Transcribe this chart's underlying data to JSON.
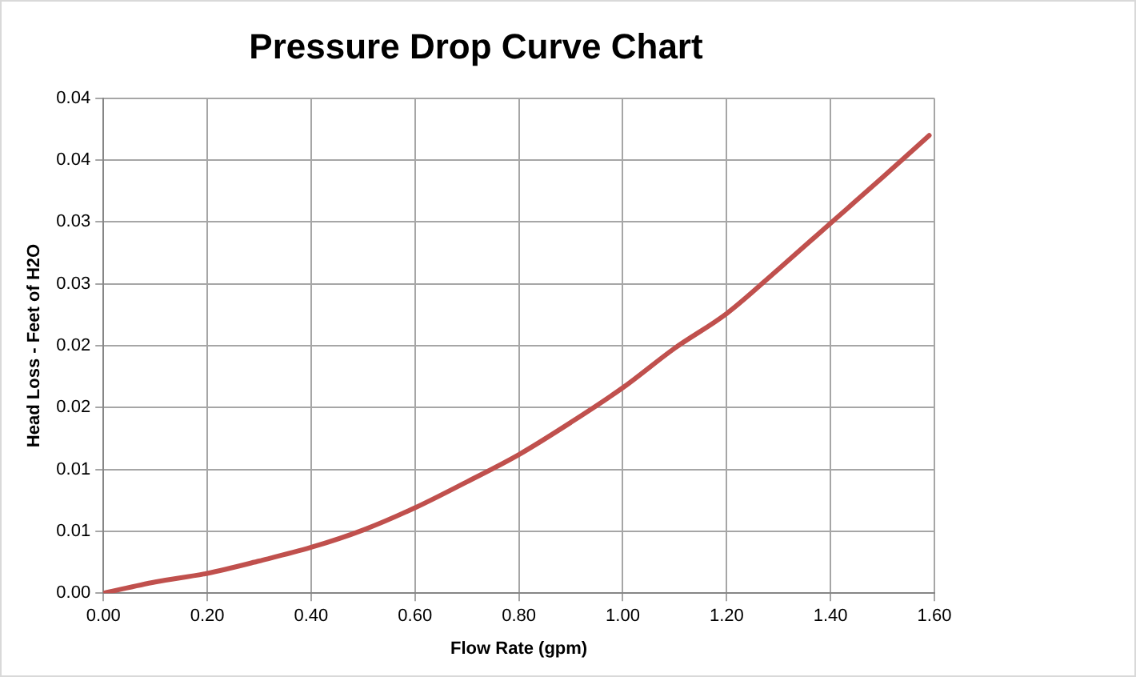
{
  "chart_data": {
    "type": "line",
    "title": "Pressure Drop Curve Chart",
    "xlabel": "Flow Rate (gpm)",
    "ylabel": "Head Loss - Feet of H2O",
    "x": [
      0,
      0.1,
      0.2,
      0.3,
      0.4,
      0.5,
      0.6,
      0.7,
      0.8,
      0.9,
      1.0,
      1.1,
      1.2,
      1.3,
      1.4,
      1.5,
      1.59
    ],
    "series": [
      {
        "color": "#c0504d",
        "values": [
          0,
          0.0009,
          0.0016,
          0.0026,
          0.0037,
          0.0051,
          0.0069,
          0.009,
          0.0112,
          0.0138,
          0.0166,
          0.0198,
          0.0226,
          0.0262,
          0.0299,
          0.0336,
          0.037
        ]
      }
    ],
    "xlim": [
      0,
      1.6
    ],
    "xticks": [
      {
        "value": 0,
        "label": "0.00"
      },
      {
        "value": 0.2,
        "label": "0.20"
      },
      {
        "value": 0.4,
        "label": "0.40"
      },
      {
        "value": 0.6,
        "label": "0.60"
      },
      {
        "value": 0.8,
        "label": "0.80"
      },
      {
        "value": 1.0,
        "label": "1.00"
      },
      {
        "value": 1.2,
        "label": "1.20"
      },
      {
        "value": 1.4,
        "label": "1.40"
      },
      {
        "value": 1.6,
        "label": "1.60"
      }
    ],
    "ylim": [
      0,
      0.04
    ],
    "yticks": [
      {
        "value": 0,
        "label": "0.00"
      },
      {
        "value": 0.005,
        "label": "0.01"
      },
      {
        "value": 0.01,
        "label": "0.01"
      },
      {
        "value": 0.015,
        "label": "0.02"
      },
      {
        "value": 0.02,
        "label": "0.02"
      },
      {
        "value": 0.025,
        "label": "0.03"
      },
      {
        "value": 0.03,
        "label": "0.03"
      },
      {
        "value": 0.035,
        "label": "0.04"
      },
      {
        "value": 0.04,
        "label": "0.04"
      }
    ],
    "grid": true,
    "marker": "none",
    "line_style": "solid"
  }
}
